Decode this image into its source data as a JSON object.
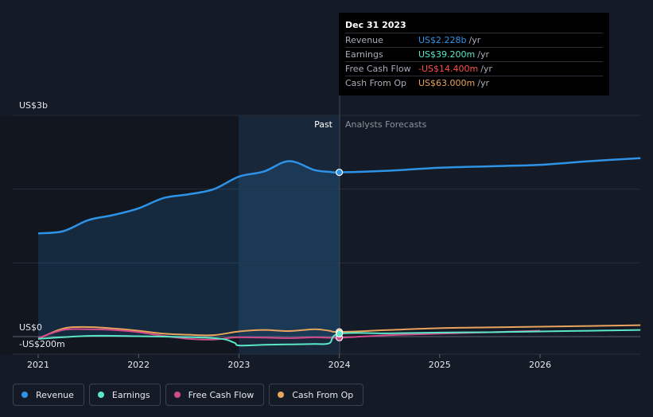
{
  "chart_data": {
    "type": "line",
    "y_top_label": "US$3b",
    "y_zero_label": "US$0",
    "y_neg_label": "-US$200m",
    "ylim": [
      -200,
      3000
    ],
    "x_ticks": [
      "2021",
      "2022",
      "2023",
      "2024",
      "2025",
      "2026"
    ],
    "past_label": "Past",
    "forecast_label": "Analysts Forecasts",
    "series": [
      {
        "name": "Revenue",
        "color": "#2e93e6",
        "points": [
          [
            2021.0,
            1400
          ],
          [
            2021.25,
            1430
          ],
          [
            2021.5,
            1580
          ],
          [
            2021.75,
            1650
          ],
          [
            2022.0,
            1740
          ],
          [
            2022.25,
            1880
          ],
          [
            2022.5,
            1930
          ],
          [
            2022.75,
            2000
          ],
          [
            2023.0,
            2170
          ],
          [
            2023.25,
            2240
          ],
          [
            2023.5,
            2380
          ],
          [
            2023.75,
            2260
          ],
          [
            2023.9,
            2235
          ],
          [
            2024.0,
            2228
          ],
          [
            2024.5,
            2250
          ],
          [
            2025.0,
            2290
          ],
          [
            2025.5,
            2310
          ],
          [
            2026.0,
            2330
          ],
          [
            2026.5,
            2380
          ],
          [
            2027.0,
            2420
          ]
        ]
      },
      {
        "name": "Earnings",
        "color": "#5ce6c8",
        "points": [
          [
            2021.0,
            -30
          ],
          [
            2021.5,
            10
          ],
          [
            2022.0,
            5
          ],
          [
            2022.75,
            -20
          ],
          [
            2022.95,
            -80
          ],
          [
            2023.0,
            -120
          ],
          [
            2023.25,
            -110
          ],
          [
            2023.5,
            -105
          ],
          [
            2023.75,
            -100
          ],
          [
            2023.9,
            -90
          ],
          [
            2024.0,
            39.2
          ],
          [
            2024.5,
            45
          ],
          [
            2025.0,
            55
          ],
          [
            2025.5,
            60
          ],
          [
            2026.0,
            70
          ],
          [
            2026.5,
            80
          ],
          [
            2027.0,
            90
          ]
        ]
      },
      {
        "name": "Free Cash Flow",
        "color": "#d14b8c",
        "points": [
          [
            2021.0,
            -20
          ],
          [
            2021.25,
            90
          ],
          [
            2021.5,
            100
          ],
          [
            2021.75,
            90
          ],
          [
            2022.0,
            60
          ],
          [
            2022.25,
            10
          ],
          [
            2022.5,
            -30
          ],
          [
            2022.75,
            -40
          ],
          [
            2023.0,
            -10
          ],
          [
            2023.5,
            -20
          ],
          [
            2023.75,
            -10
          ],
          [
            2024.0,
            -14.4
          ],
          [
            2024.5,
            20
          ],
          [
            2025.0,
            40
          ],
          [
            2025.5,
            60
          ],
          [
            2026.0,
            80
          ]
        ]
      },
      {
        "name": "Cash From Op",
        "color": "#e8a45c",
        "points": [
          [
            2021.0,
            -30
          ],
          [
            2021.25,
            110
          ],
          [
            2021.5,
            130
          ],
          [
            2021.75,
            110
          ],
          [
            2022.0,
            80
          ],
          [
            2022.25,
            40
          ],
          [
            2022.5,
            25
          ],
          [
            2022.75,
            20
          ],
          [
            2023.0,
            70
          ],
          [
            2023.25,
            90
          ],
          [
            2023.5,
            75
          ],
          [
            2023.75,
            100
          ],
          [
            2023.9,
            80
          ],
          [
            2024.0,
            63
          ],
          [
            2024.5,
            90
          ],
          [
            2025.0,
            115
          ],
          [
            2025.5,
            125
          ],
          [
            2026.0,
            135
          ],
          [
            2026.5,
            145
          ],
          [
            2027.0,
            155
          ]
        ]
      }
    ]
  },
  "tooltip": {
    "date": "Dec 31 2023",
    "rows": [
      {
        "label": "Revenue",
        "value": "US$2.228b",
        "unit": "/yr",
        "color": "#2e93e6"
      },
      {
        "label": "Earnings",
        "value": "US$39.200m",
        "unit": "/yr",
        "color": "#5ce6c8"
      },
      {
        "label": "Free Cash Flow",
        "value": "-US$14.400m",
        "unit": "/yr",
        "color": "#ff4d4d"
      },
      {
        "label": "Cash From Op",
        "value": "US$63.000m",
        "unit": "/yr",
        "color": "#e8a45c"
      }
    ]
  },
  "legend": [
    {
      "label": "Revenue",
      "color": "#2e93e6"
    },
    {
      "label": "Earnings",
      "color": "#5ce6c8"
    },
    {
      "label": "Free Cash Flow",
      "color": "#d14b8c"
    },
    {
      "label": "Cash From Op",
      "color": "#e8a45c"
    }
  ]
}
